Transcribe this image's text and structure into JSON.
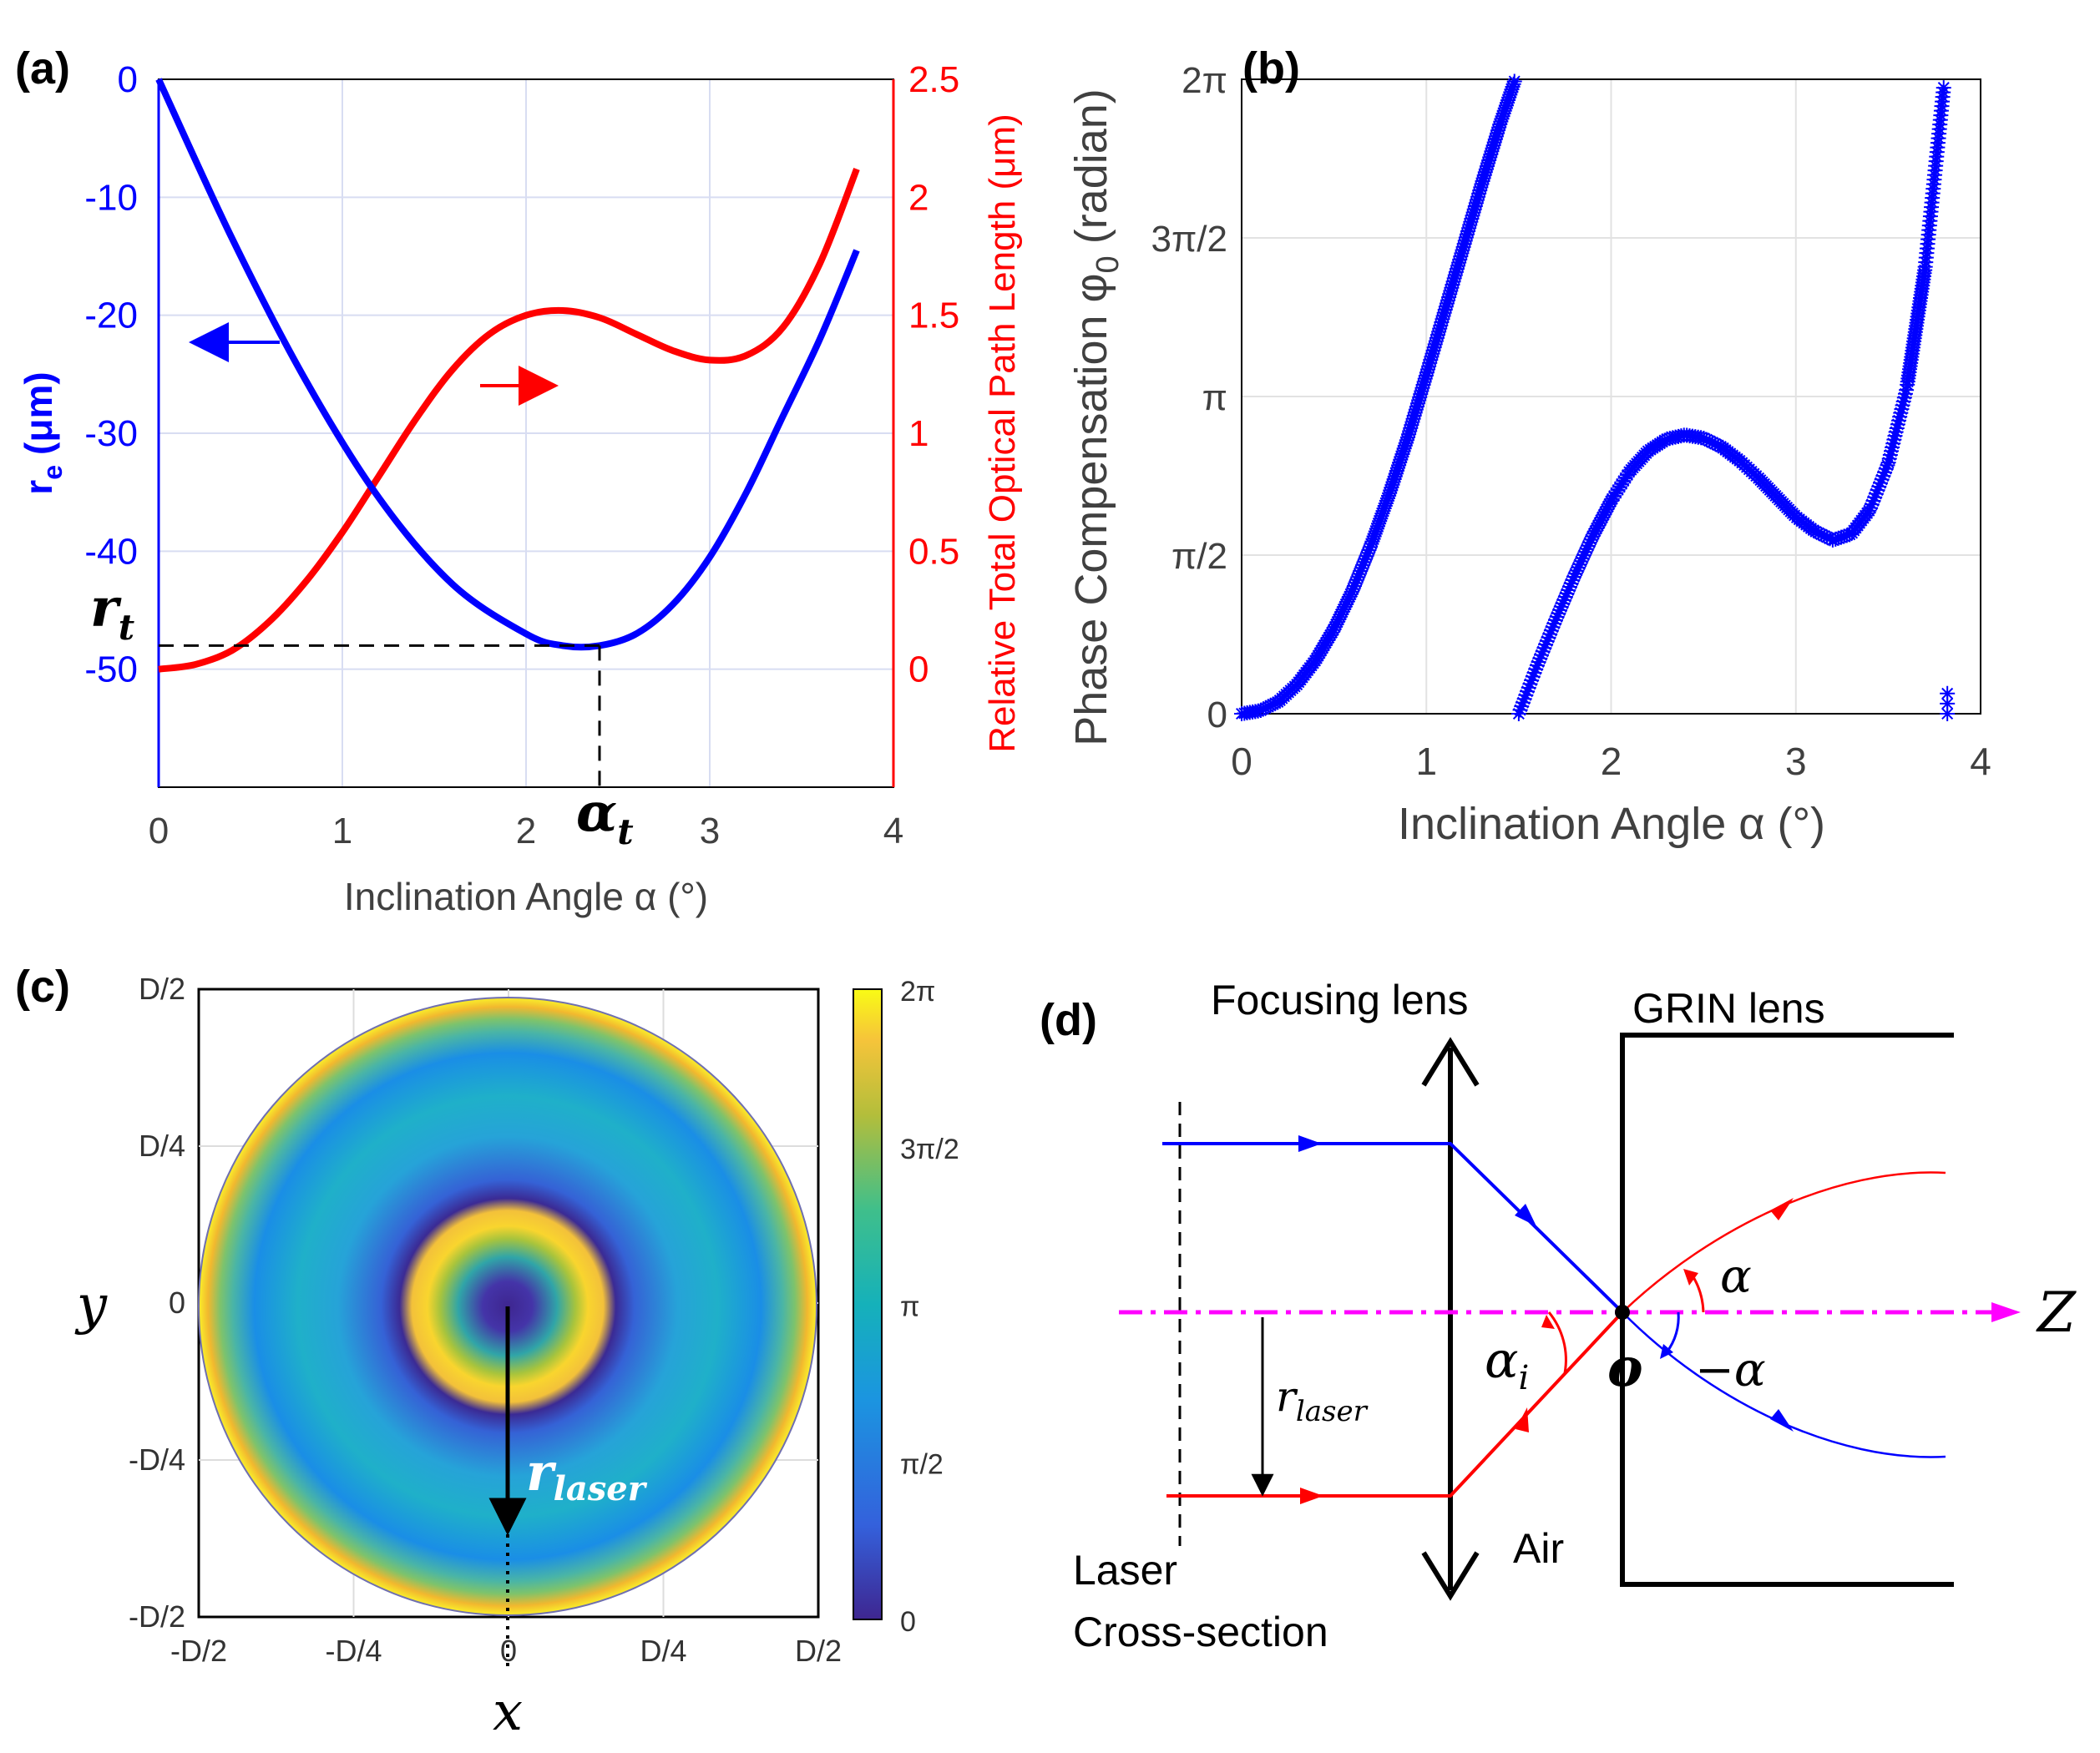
{
  "colors": {
    "blue": "#0000ff",
    "red": "#ff0000",
    "magenta": "#ff00ff",
    "grid": "#d8ddf2",
    "dark": "#000000",
    "tick": "#404040"
  },
  "panel_labels": {
    "a": "(a)",
    "b": "(b)",
    "c": "(c)",
    "d": "(d)"
  },
  "chart_data": [
    {
      "id": "a",
      "type": "line",
      "xlabel": "Inclination Angle α (°)",
      "ylabel_left": "r",
      "ylabel_left_sub": "e",
      "ylabel_left_unit": "(μm)",
      "ylabel_right": "Relative Total Optical Path Length (μm)",
      "xlim": [
        0,
        4
      ],
      "ylim_left": [
        -60,
        0
      ],
      "ylim_right": [
        -0.5,
        2.5
      ],
      "xticks": [
        "0",
        "1",
        "2",
        "3",
        "4"
      ],
      "yticks_left": [
        "0",
        "-10",
        "-20",
        "-30",
        "-40",
        "-50"
      ],
      "yticks_right": [
        "2.5",
        "2",
        "1.5",
        "1",
        "0.5",
        "0"
      ],
      "series": [
        {
          "name": "r_e",
          "axis": "left",
          "color": "#0000ff",
          "x": [
            0,
            0.4,
            0.8,
            1.2,
            1.6,
            2.0,
            2.2,
            2.4,
            2.6,
            2.8,
            3.0,
            3.2,
            3.4,
            3.6,
            3.8
          ],
          "y": [
            0,
            -13.5,
            -25.5,
            -35.5,
            -42.8,
            -47,
            -48,
            -48,
            -47,
            -44.5,
            -40.5,
            -35,
            -28.5,
            -22,
            -14.5
          ]
        },
        {
          "name": "OPL",
          "axis": "right",
          "color": "#ff0000",
          "x": [
            0,
            0.2,
            0.4,
            0.6,
            0.8,
            1.0,
            1.2,
            1.4,
            1.6,
            1.8,
            2.0,
            2.2,
            2.4,
            2.6,
            2.8,
            3.0,
            3.2,
            3.4,
            3.6,
            3.8
          ],
          "y": [
            0,
            0.02,
            0.08,
            0.2,
            0.37,
            0.58,
            0.82,
            1.06,
            1.27,
            1.42,
            1.5,
            1.52,
            1.49,
            1.42,
            1.35,
            1.31,
            1.33,
            1.45,
            1.72,
            2.12
          ]
        }
      ],
      "annotations": {
        "rt_label": "r",
        "rt_sub": "t",
        "at_label": "α",
        "at_sub": "t",
        "rt_value": -48,
        "at_value": 2.4
      }
    },
    {
      "id": "b",
      "type": "scatter",
      "xlabel": "Inclination Angle α (°)",
      "ylabel": "Phase Compensation φ",
      "ylabel_sub": "0",
      "ylabel_unit": "(radian)",
      "xlim": [
        0,
        4
      ],
      "ylim": [
        0,
        6.2832
      ],
      "xticks": [
        "0",
        "1",
        "2",
        "3",
        "4"
      ],
      "yticks": [
        "0",
        "π/2",
        "π",
        "3π/2",
        "2π"
      ],
      "marker": "*",
      "series": [
        {
          "name": "branch1",
          "x": [
            0,
            0.1,
            0.2,
            0.3,
            0.4,
            0.5,
            0.6,
            0.7,
            0.8,
            0.9,
            1.0,
            1.1,
            1.2,
            1.3,
            1.4,
            1.48
          ],
          "y": [
            0,
            0.03,
            0.12,
            0.29,
            0.53,
            0.84,
            1.22,
            1.67,
            2.18,
            2.74,
            3.36,
            3.99,
            4.62,
            5.25,
            5.85,
            6.28
          ]
        },
        {
          "name": "branch2",
          "x": [
            1.5,
            1.6,
            1.7,
            1.8,
            1.9,
            2.0,
            2.1,
            2.2,
            2.3,
            2.4,
            2.5,
            2.6,
            2.7,
            2.8,
            2.9,
            3.0,
            3.1,
            3.2,
            3.3,
            3.4,
            3.5,
            3.6,
            3.7,
            3.8
          ],
          "y": [
            0,
            0.48,
            0.93,
            1.36,
            1.76,
            2.11,
            2.4,
            2.6,
            2.72,
            2.76,
            2.73,
            2.64,
            2.5,
            2.33,
            2.14,
            1.95,
            1.81,
            1.72,
            1.78,
            2.02,
            2.48,
            3.22,
            4.42,
            6.2
          ]
        },
        {
          "name": "wrapped",
          "x": [
            3.82,
            3.82,
            3.82
          ],
          "y": [
            0,
            0.1,
            0.2
          ]
        }
      ]
    },
    {
      "id": "c",
      "type": "heatmap",
      "xlabel": "x",
      "ylabel": "y",
      "xticks": [
        "-D/2",
        "-D/4",
        "0",
        "D/4",
        "D/2"
      ],
      "yticks": [
        "D/2",
        "D/4",
        "0",
        "-D/4",
        "-D/2"
      ],
      "colorbar_ticks": [
        "2π",
        "3π/2",
        "π",
        "π/2",
        "0"
      ],
      "annotation": "r",
      "annotation_sub": "laser"
    }
  ],
  "diagram_d": {
    "focusing_lens": "Focusing lens",
    "grin_lens": "GRIN lens",
    "z_label": "Z",
    "o_label": "o",
    "alpha": "α",
    "minus_alpha": "−α",
    "alpha_i": "α",
    "alpha_i_sub": "i",
    "r_laser": "r",
    "r_laser_sub": "laser",
    "air": "Air",
    "laser": "Laser",
    "cross_section": "Cross-section"
  }
}
